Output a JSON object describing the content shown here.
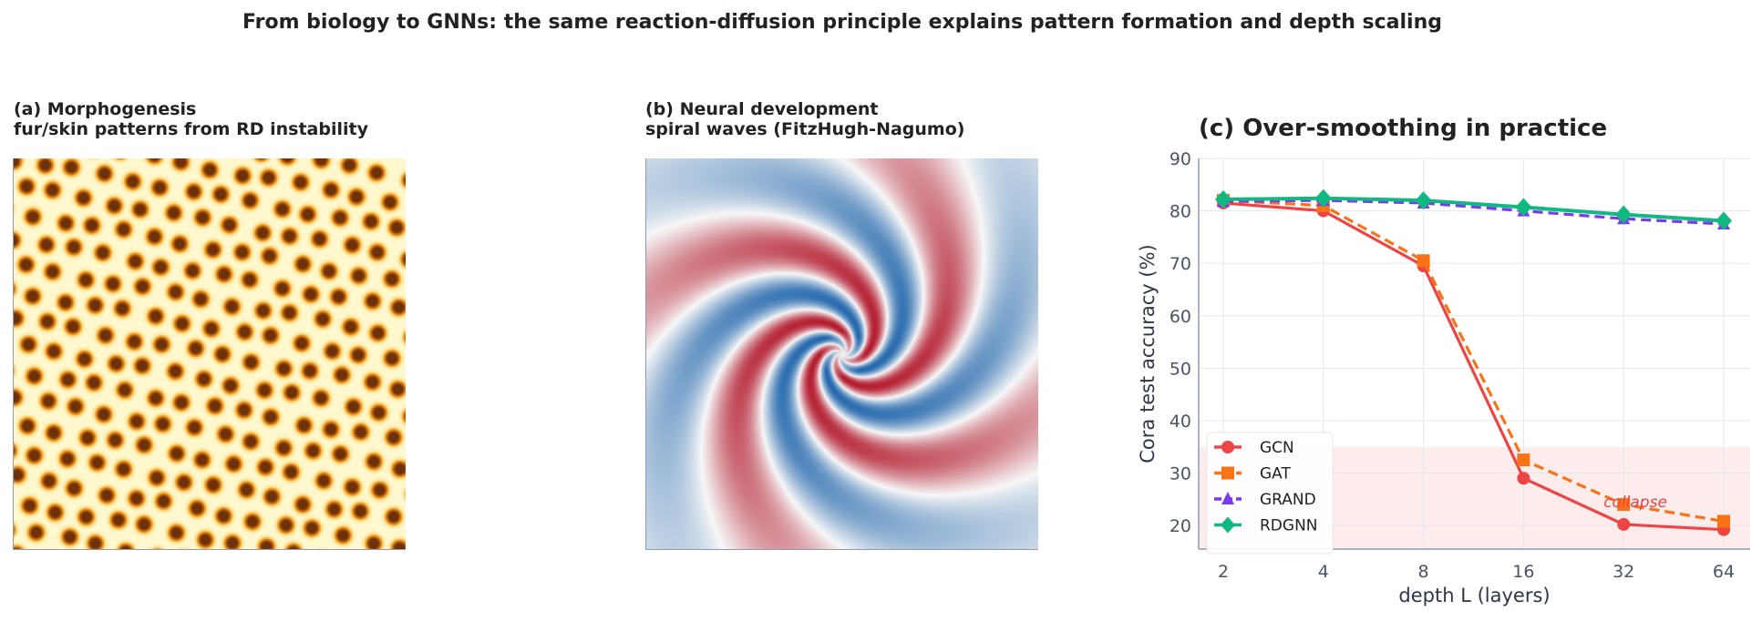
{
  "suptitle": "From biology to GNNs:  the same reaction-diffusion principle explains pattern formation and depth scaling",
  "panel_a": {
    "title_line1": "(a) Morphogenesis",
    "title_line2": "fur/skin patterns from RD instability",
    "colormap": "YlOrBr"
  },
  "panel_b": {
    "title_line1": "(b) Neural development",
    "title_line2": "spiral waves (FitzHugh-Nagumo)",
    "colormap": "RdBu"
  },
  "chart_data": {
    "type": "line",
    "title": "(c) Over-smoothing in practice",
    "xlabel": "depth L (layers)",
    "ylabel": "Cora test accuracy (%)",
    "x": [
      2,
      4,
      8,
      16,
      32,
      64
    ],
    "xscale": "log2",
    "ylim": [
      15.5,
      90
    ],
    "yticks": [
      20,
      30,
      40,
      50,
      60,
      70,
      80,
      90
    ],
    "grid": true,
    "legend": "lower-left",
    "series": [
      {
        "name": "GCN",
        "values": [
          81.5,
          80.0,
          69.5,
          29.0,
          20.2,
          19.2
        ],
        "color": "#ef4444",
        "marker": "circle",
        "dash": false
      },
      {
        "name": "GAT",
        "values": [
          82.0,
          81.0,
          70.5,
          32.5,
          24.0,
          20.8
        ],
        "color": "#f97316",
        "marker": "square",
        "dash": true
      },
      {
        "name": "GRAND",
        "values": [
          81.8,
          82.0,
          81.5,
          80.0,
          78.5,
          77.5
        ],
        "color": "#7c3aed",
        "marker": "triangle",
        "dash": true
      },
      {
        "name": "RDGNN",
        "values": [
          82.2,
          82.4,
          82.0,
          80.7,
          79.3,
          78.1
        ],
        "color": "#10b981",
        "marker": "diamond",
        "dash": false
      }
    ],
    "shaded_region": {
      "ymax": 35,
      "color": "#fdecec",
      "label": "collapse",
      "label_color": "#ef4444"
    }
  }
}
